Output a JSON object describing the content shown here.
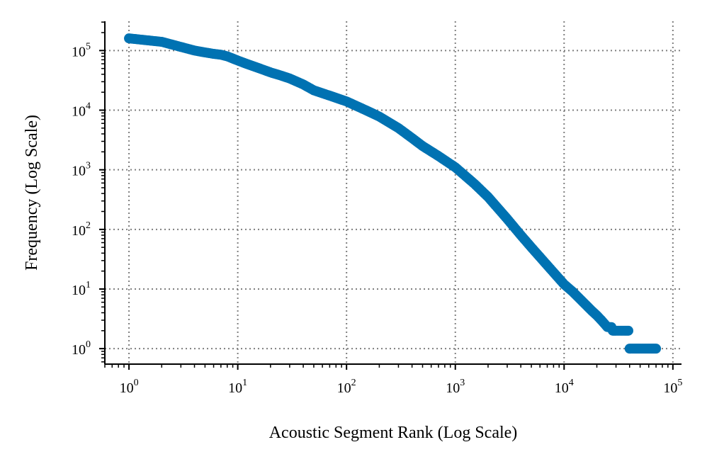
{
  "chart_data": {
    "type": "scatter",
    "xlabel": "Acoustic Segment Rank (Log Scale)",
    "ylabel": "Frequency (Log Scale)",
    "xscale": "log",
    "yscale": "log",
    "xlim": [
      0.6,
      120000
    ],
    "ylim": [
      0.55,
      310000
    ],
    "grid": true,
    "marker_color": "#0072b2",
    "xticks": [
      {
        "base": "10",
        "exp": "0",
        "value": 1
      },
      {
        "base": "10",
        "exp": "1",
        "value": 10
      },
      {
        "base": "10",
        "exp": "2",
        "value": 100
      },
      {
        "base": "10",
        "exp": "3",
        "value": 1000
      },
      {
        "base": "10",
        "exp": "4",
        "value": 10000
      },
      {
        "base": "10",
        "exp": "5",
        "value": 100000
      }
    ],
    "yticks": [
      {
        "base": "10",
        "exp": "0",
        "value": 1
      },
      {
        "base": "10",
        "exp": "1",
        "value": 10
      },
      {
        "base": "10",
        "exp": "2",
        "value": 100
      },
      {
        "base": "10",
        "exp": "3",
        "value": 1000
      },
      {
        "base": "10",
        "exp": "4",
        "value": 10000
      },
      {
        "base": "10",
        "exp": "5",
        "value": 100000
      }
    ],
    "x": [
      1,
      2,
      3,
      4,
      5,
      6,
      7,
      8,
      10,
      12,
      15,
      20,
      25,
      30,
      40,
      50,
      70,
      100,
      150,
      200,
      300,
      400,
      500,
      700,
      1000,
      1500,
      2000,
      3000,
      4000,
      5000,
      7000,
      10000,
      12000,
      15000,
      18000,
      20000,
      22000,
      25000,
      28000,
      30000,
      33000,
      36000,
      40000,
      45000,
      50000,
      55000,
      60000,
      65000,
      70000
    ],
    "y": [
      160000,
      140000,
      115000,
      100000,
      93000,
      88000,
      85000,
      80000,
      68000,
      60000,
      52000,
      43000,
      38000,
      34000,
      27000,
      21500,
      17500,
      14000,
      10000,
      7800,
      5000,
      3400,
      2500,
      1700,
      1100,
      580,
      350,
      150,
      80,
      50,
      25,
      12,
      9,
      6,
      4.3,
      3.6,
      3,
      2.3,
      2,
      2,
      2,
      2,
      1,
      1,
      1,
      1,
      1,
      1,
      1
    ]
  }
}
